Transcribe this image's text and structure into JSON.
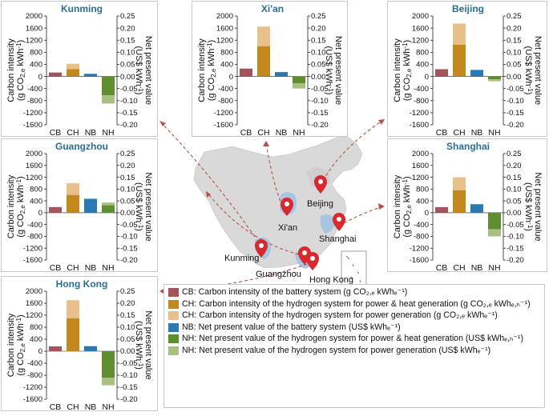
{
  "colors": {
    "cb": "#a4545a",
    "ch_heat": "#c4891d",
    "ch_power": "#e8c08a",
    "nb": "#2b79b2",
    "nh_heat": "#5e8e2e",
    "nh_power": "#a8c081",
    "title": "#2a6e94",
    "map_land": "#d8d8d8",
    "map_sea": "#a8c6e3",
    "marker": "#d82a2e",
    "arrow": "#b5514a"
  },
  "axis_labels": {
    "left": "Carbon intensity (g CO2,e kWh-1)",
    "right": "Net present value (US$ kWh-1)"
  },
  "map": {
    "labels": [
      "Beijing",
      "Xi'an",
      "Shanghai",
      "Kunming",
      "Guangzhou",
      "Hong Kong"
    ]
  },
  "legend": [
    {
      "key": "cb",
      "text": "CB: Carbon intensity of the battery system (g CO₂,ₑ kWhₑ⁻¹)"
    },
    {
      "key": "ch_heat",
      "text": "CH: Carbon intensity of the hydrogen system for power & heat generation (g CO₂,ₑ kWhₑ,ₕ⁻¹)"
    },
    {
      "key": "ch_power",
      "text": "CH: Carbon intensity of the hydrogen system for power generation (g CO₂,ₑ kWhₑ⁻¹)"
    },
    {
      "key": "nb",
      "text": "NB: Net present value of the battery system (US$ kWhₑ⁻¹)"
    },
    {
      "key": "nh_heat",
      "text": "NH: Net present value of the hydrogen system for power & heat generation (US$ kWhₑ,ₕ⁻¹)"
    },
    {
      "key": "nh_power",
      "text": "NH: Net present value of the hydrogen system for power generation (US$ kWhₑ⁻¹)"
    }
  ],
  "chart_data": [
    {
      "type": "bar",
      "title": "Kunming",
      "categories": [
        "CB",
        "CH",
        "NB",
        "NH"
      ],
      "ylim_left": [
        -1600,
        2000
      ],
      "ylim_right": [
        -0.2,
        0.25
      ],
      "left_ticks": [
        "2000",
        "1600",
        "1200",
        "800",
        "400",
        "0",
        "-400",
        "-800",
        "-1200",
        "-1600"
      ],
      "right_ticks": [
        "0.25",
        "0.20",
        "0.15",
        "0.10",
        "0.05",
        "0.00",
        "-0.05",
        "-0.10",
        "-0.15",
        "-0.20"
      ],
      "cb": 130,
      "ch_heat": 240,
      "ch_power": 420,
      "nb": 0.011,
      "nh_heat": -0.078,
      "nh_power": -0.112
    },
    {
      "type": "bar",
      "title": "Xi'an",
      "categories": [
        "CB",
        "CH",
        "NB",
        "NH"
      ],
      "ylim_left": [
        -1600,
        2000
      ],
      "ylim_right": [
        -0.2,
        0.25
      ],
      "left_ticks": [
        "2000",
        "1600",
        "1200",
        "800",
        "400",
        "0",
        "-400",
        "-800",
        "-1200",
        "-1600"
      ],
      "right_ticks": [
        "0.25",
        "0.20",
        "0.15",
        "0.10",
        "0.05",
        "0.00",
        "-0.05",
        "-0.10",
        "-0.15",
        "-0.20"
      ],
      "cb": 260,
      "ch_heat": 1000,
      "ch_power": 1650,
      "nb": 0.018,
      "nh_heat": -0.028,
      "nh_power": -0.05
    },
    {
      "type": "bar",
      "title": "Beijing",
      "categories": [
        "CB",
        "CH",
        "NB",
        "NH"
      ],
      "ylim_left": [
        -1600,
        2000
      ],
      "ylim_right": [
        -0.2,
        0.25
      ],
      "left_ticks": [
        "2000",
        "1600",
        "1200",
        "800",
        "400",
        "0",
        "-400",
        "-800",
        "-1200",
        "-1600"
      ],
      "right_ticks": [
        "0.25",
        "0.20",
        "0.15",
        "0.10",
        "0.05",
        "0.00",
        "-0.05",
        "-0.10",
        "-0.15",
        "-0.20"
      ],
      "cb": 240,
      "ch_heat": 1050,
      "ch_power": 1750,
      "nb": 0.027,
      "nh_heat": -0.012,
      "nh_power": -0.02
    },
    {
      "type": "bar",
      "title": "Guangzhou",
      "categories": [
        "CB",
        "CH",
        "NB",
        "NH"
      ],
      "ylim_left": [
        -1600,
        2000
      ],
      "ylim_right": [
        -0.2,
        0.25
      ],
      "left_ticks": [
        "2000",
        "1600",
        "1200",
        "800",
        "400",
        "0",
        "-400",
        "-800",
        "-1200",
        "-1600"
      ],
      "right_ticks": [
        "0.25",
        "0.20",
        "0.15",
        "0.10",
        "0.05",
        "0.00",
        "-0.05",
        "-0.10",
        "-0.15",
        "-0.20"
      ],
      "cb": 190,
      "ch_heat": 600,
      "ch_power": 1000,
      "nb": 0.059,
      "nh_heat": 0.031,
      "nh_power": 0.043
    },
    {
      "type": "bar",
      "title": "Shanghai",
      "categories": [
        "CB",
        "CH",
        "NB",
        "NH"
      ],
      "ylim_left": [
        -1600,
        2000
      ],
      "ylim_right": [
        -0.2,
        0.25
      ],
      "left_ticks": [
        "2000",
        "1600",
        "1200",
        "800",
        "400",
        "0",
        "-400",
        "-800",
        "-1200",
        "-1600"
      ],
      "right_ticks": [
        "0.25",
        "0.20",
        "0.15",
        "0.10",
        "0.05",
        "0.00",
        "-0.05",
        "-0.10",
        "-0.15",
        "-0.20"
      ],
      "cb": 190,
      "ch_heat": 760,
      "ch_power": 1200,
      "nb": 0.036,
      "nh_heat": -0.07,
      "nh_power": -0.1
    },
    {
      "type": "bar",
      "title": "Hong Kong",
      "categories": [
        "CB",
        "CH",
        "NB",
        "NH"
      ],
      "ylim_left": [
        -1600,
        2000
      ],
      "ylim_right": [
        -0.2,
        0.25
      ],
      "left_ticks": [
        "2000",
        "1600",
        "1200",
        "800",
        "400",
        "0",
        "-400",
        "-800",
        "-1200",
        "-1600"
      ],
      "right_ticks": [
        "0.25",
        "0.20",
        "0.15",
        "0.10",
        "0.05",
        "0.00",
        "-0.05",
        "-0.10",
        "-0.15",
        "-0.20"
      ],
      "cb": 160,
      "ch_heat": 1100,
      "ch_power": 1700,
      "nb": 0.021,
      "nh_heat": -0.11,
      "nh_power": -0.142
    }
  ]
}
